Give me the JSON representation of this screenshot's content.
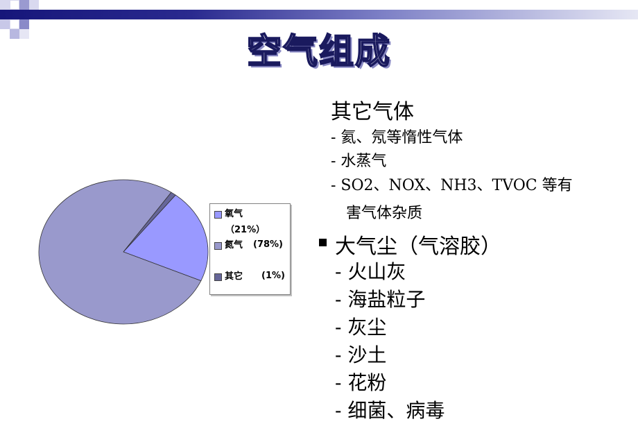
{
  "title": "空气组成",
  "chart_data": {
    "type": "pie",
    "slices": [
      {
        "label": "氧气",
        "value": 21,
        "pct_label": "（21%）",
        "color": "#9999ff"
      },
      {
        "label": "氮气",
        "value": 78,
        "pct_label": "(78%)",
        "color": "#9999cc"
      },
      {
        "label": "其它",
        "value": 1,
        "pct_label": "(1%)",
        "color": "#666699"
      }
    ],
    "legend_placement": "right"
  },
  "sections": {
    "other_gases": {
      "heading": "其它气体",
      "items": [
        "- 氦、氖等惰性气体",
        "- 水蒸气",
        "- SO2、NOX、NH3、TVOC 等有",
        "害气体杂质"
      ]
    },
    "aerosol": {
      "heading": "大气尘（气溶胶）",
      "items": [
        "- 火山灰",
        "- 海盐粒子",
        "- 灰尘",
        "- 沙土",
        "- 花粉",
        "- 细菌、病毒"
      ]
    }
  }
}
